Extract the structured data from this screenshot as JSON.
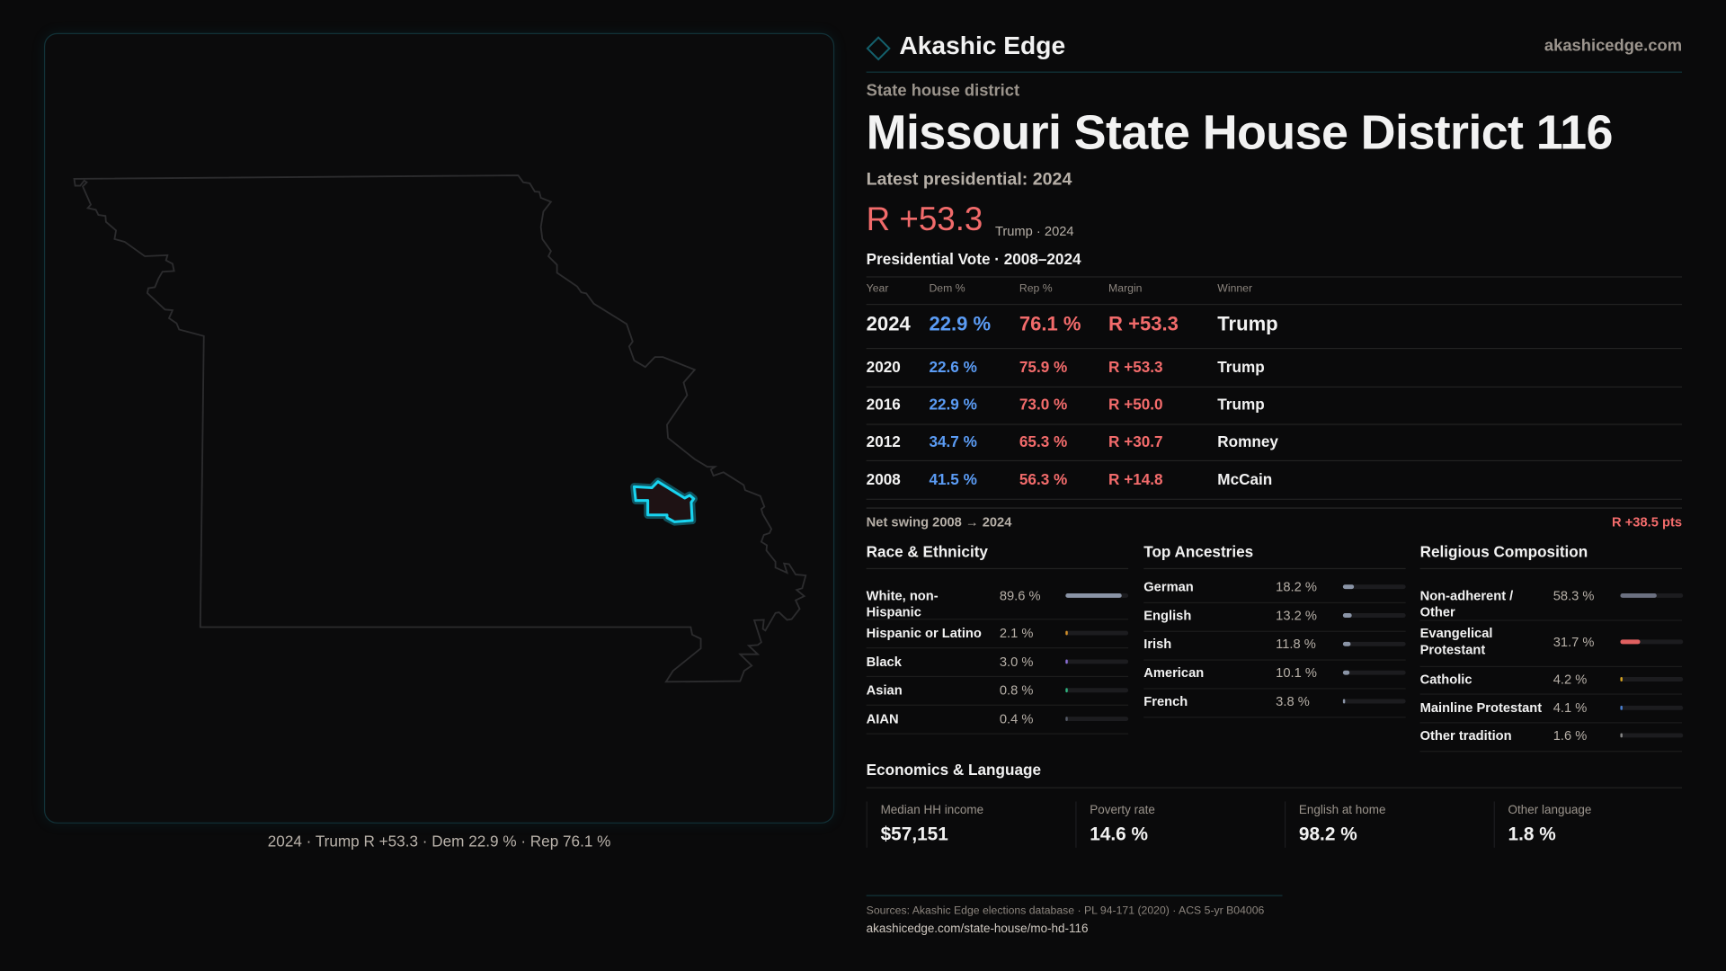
{
  "brand": {
    "name": "Akashic Edge",
    "site": "akashicedge.com",
    "accent": "#18d4f0"
  },
  "header": {
    "kicker": "State house district",
    "title": "Missouri State House District 116",
    "latest": "Latest presidential: 2024",
    "margin": "R +53.3",
    "margin_sub": "Trump · 2024"
  },
  "map": {
    "caption": "2024 · Trump R +53.3 · Dem 22.9 % · Rep 76.1 %",
    "highlight_color": "#18d4f0",
    "state": "Missouri"
  },
  "table": {
    "title": "Presidential Vote · 2008–2024",
    "headers": [
      "Year",
      "Dem %",
      "Rep %",
      "Margin",
      "Winner"
    ],
    "rows": [
      {
        "year": "2024",
        "dem": "22.9 %",
        "rep": "76.1 %",
        "margin": "R +53.3",
        "winner": "Trump"
      },
      {
        "year": "2020",
        "dem": "22.6 %",
        "rep": "75.9 %",
        "margin": "R +53.3",
        "winner": "Trump"
      },
      {
        "year": "2016",
        "dem": "22.9 %",
        "rep": "73.0 %",
        "margin": "R +50.0",
        "winner": "Trump"
      },
      {
        "year": "2012",
        "dem": "34.7 %",
        "rep": "65.3 %",
        "margin": "R +30.7",
        "winner": "Romney"
      },
      {
        "year": "2008",
        "dem": "41.5 %",
        "rep": "56.3 %",
        "margin": "R +14.8",
        "winner": "McCain"
      }
    ],
    "swing_label": "Net swing 2008 → 2024",
    "swing_value": "R +38.5 pts"
  },
  "race": {
    "title": "Race & Ethnicity",
    "items": [
      {
        "label": "White, non-Hispanic",
        "value": "89.6 %",
        "pct": 89.6,
        "color": "#8a94a6"
      },
      {
        "label": "Hispanic or Latino",
        "value": "2.1 %",
        "pct": 2.1,
        "color": "#d4902a"
      },
      {
        "label": "Black",
        "value": "3.0 %",
        "pct": 3.0,
        "color": "#8b6fd6"
      },
      {
        "label": "Asian",
        "value": "0.8 %",
        "pct": 0.8,
        "color": "#2fb37f"
      },
      {
        "label": "AIAN",
        "value": "0.4 %",
        "pct": 0.4,
        "color": "#555a66"
      }
    ]
  },
  "ancestry": {
    "title": "Top Ancestries",
    "items": [
      {
        "label": "German",
        "value": "18.2 %",
        "pct": 18.2,
        "color": "#8a94a6"
      },
      {
        "label": "English",
        "value": "13.2 %",
        "pct": 13.2,
        "color": "#8a94a6"
      },
      {
        "label": "Irish",
        "value": "11.8 %",
        "pct": 11.8,
        "color": "#8a94a6"
      },
      {
        "label": "American",
        "value": "10.1 %",
        "pct": 10.1,
        "color": "#8a94a6"
      },
      {
        "label": "French",
        "value": "3.8 %",
        "pct": 3.8,
        "color": "#8a94a6"
      }
    ]
  },
  "religion": {
    "title": "Religious Composition",
    "items": [
      {
        "label": "Non-adherent / Other",
        "value": "58.3 %",
        "pct": 58.3,
        "color": "#6b7080"
      },
      {
        "label": "Evangelical Protestant",
        "value": "31.7 %",
        "pct": 31.7,
        "color": "#e06060"
      },
      {
        "label": "Catholic",
        "value": "4.2 %",
        "pct": 4.2,
        "color": "#d9a520"
      },
      {
        "label": "Mainline Protestant",
        "value": "4.1 %",
        "pct": 4.1,
        "color": "#4a7fd0"
      },
      {
        "label": "Other tradition",
        "value": "1.6 %",
        "pct": 1.6,
        "color": "#888888"
      }
    ]
  },
  "economics": {
    "title": "Economics & Language",
    "cards": [
      {
        "label": "Median HH income",
        "value": "$57,151"
      },
      {
        "label": "Poverty rate",
        "value": "14.6 %"
      },
      {
        "label": "English at home",
        "value": "98.2 %"
      },
      {
        "label": "Other language",
        "value": "1.8 %"
      }
    ]
  },
  "footer": {
    "sources": "Sources: Akashic Edge elections database · PL 94-171 (2020) · ACS 5-yr B04006",
    "url": "akashicedge.com/state-house/mo-hd-116"
  }
}
